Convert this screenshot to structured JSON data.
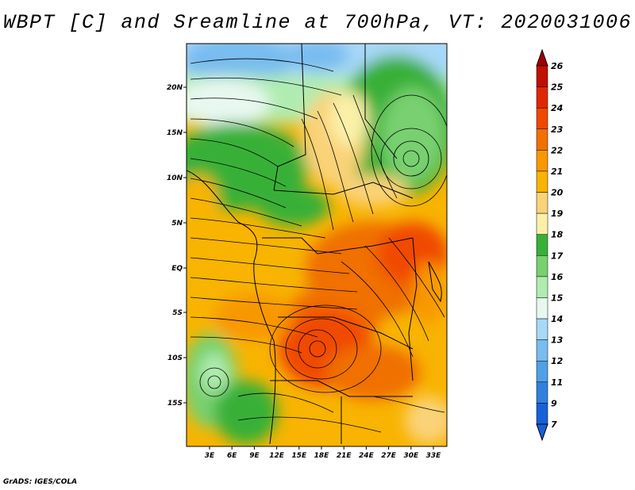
{
  "title": "WBPT [C] and Sreamline at 700hPa, VT: 2020031006",
  "footer": "GrADS: IGES/COLA",
  "map": {
    "region": "Central and Southern Africa",
    "lat_labels": [
      "20N",
      "15N",
      "10N",
      "5N",
      "EQ",
      "5S",
      "10S",
      "15S"
    ],
    "lon_labels": [
      "3E",
      "6E",
      "9E",
      "12E",
      "15E",
      "18E",
      "21E",
      "24E",
      "27E",
      "30E",
      "33E"
    ]
  },
  "colorbar": {
    "labels": [
      "26",
      "25",
      "24",
      "23",
      "22",
      "21",
      "20",
      "19",
      "18",
      "17",
      "16",
      "15",
      "14",
      "13",
      "12",
      "11",
      "9",
      "7"
    ],
    "colors": [
      "#a00000",
      "#c01000",
      "#e02800",
      "#f04800",
      "#f07000",
      "#f89800",
      "#f8b400",
      "#fad278",
      "#fcf0a8",
      "#38b038",
      "#78d070",
      "#b0ecb0",
      "#e8f8f0",
      "#a8d8f8",
      "#78bcf0",
      "#50a0e8",
      "#3080e0",
      "#1860d8"
    ],
    "colors_top": "#a00000",
    "colors_bottom": "#1860d8"
  },
  "fields": {
    "variable": "WBPT",
    "unit": "C",
    "level": "700hPa",
    "valid_time": "2020031006"
  }
}
